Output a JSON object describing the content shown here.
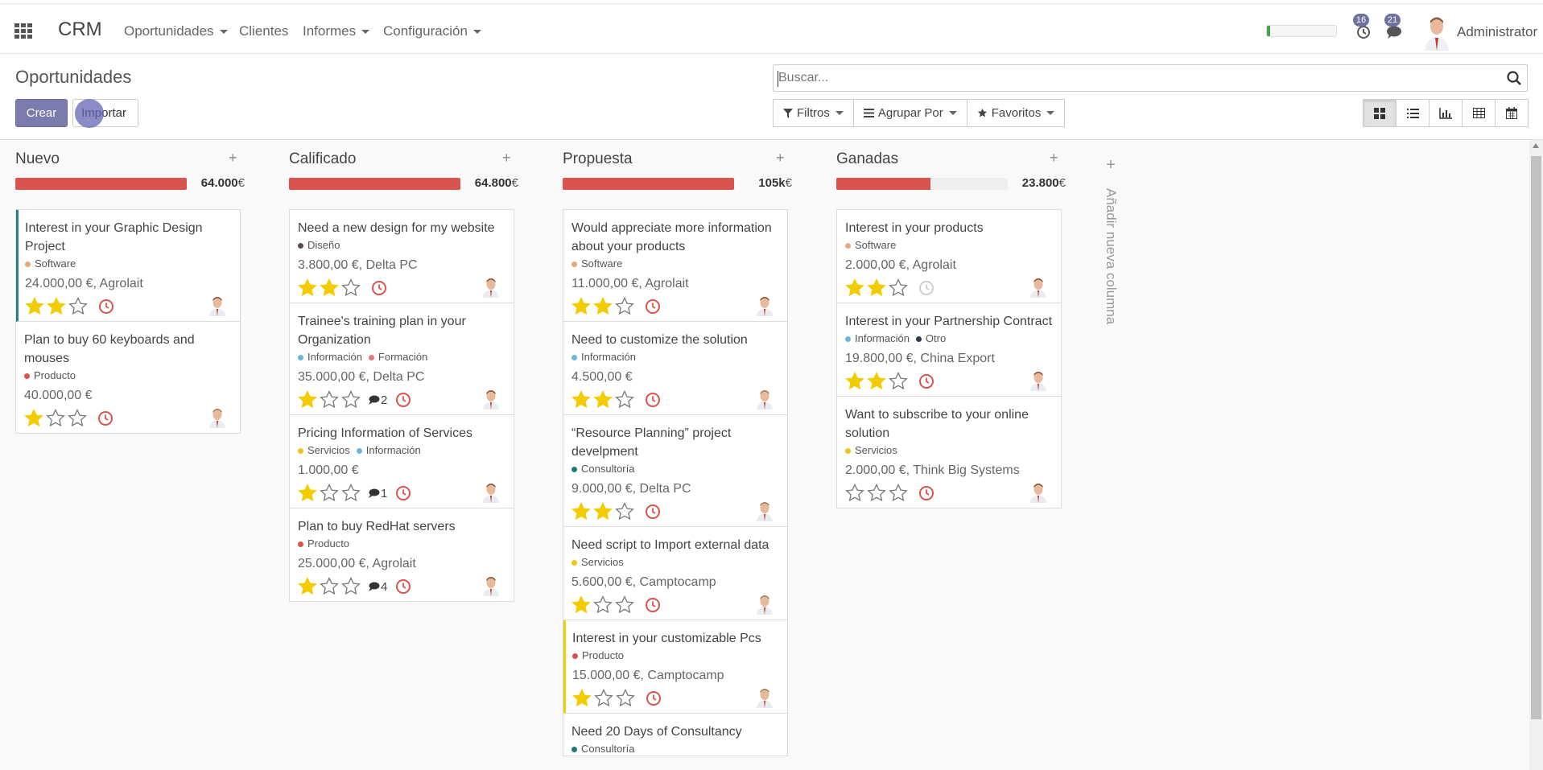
{
  "navbar": {
    "brand": "CRM",
    "menus": [
      {
        "label": "Oportunidades",
        "dropdown": true
      },
      {
        "label": "Clientes",
        "dropdown": false
      },
      {
        "label": "Informes",
        "dropdown": true
      },
      {
        "label": "Configuración",
        "dropdown": true
      }
    ],
    "activities_count": "16",
    "messages_count": "21",
    "user": "Administrator",
    "progress": 0.05
  },
  "control_panel": {
    "title": "Oportunidades",
    "create_label": "Crear",
    "import_label": "Importar",
    "search_placeholder": "Buscar...",
    "filters_label": "Filtros",
    "group_by_label": "Agrupar Por",
    "favorites_label": "Favoritos"
  },
  "columns": [
    {
      "title": "Nuevo",
      "total": "64.000",
      "currency": "€",
      "progress": 1.0,
      "cards": [
        {
          "title": "Interest in your Graphic Design Project",
          "tags": [
            {
              "name": "Software",
              "color": "#e8a97a"
            }
          ],
          "amount": "24.000,00 €, Agrolait",
          "stars": 2,
          "messages": "",
          "clock": "late",
          "border": "teal",
          "avatar": "a1"
        },
        {
          "title": "Plan to buy 60 keyboards and mouses",
          "tags": [
            {
              "name": "Producto",
              "color": "#d9534f"
            }
          ],
          "amount": "40.000,00 €",
          "stars": 1,
          "messages": "",
          "clock": "late",
          "border": "",
          "avatar": "a2"
        }
      ]
    },
    {
      "title": "Calificado",
      "total": "64.800",
      "currency": "€",
      "progress": 1.0,
      "cards": [
        {
          "title": "Need a new design for my website",
          "tags": [
            {
              "name": "Diseño",
              "color": "#5b4b58"
            }
          ],
          "amount": "3.800,00 €, Delta PC",
          "stars": 2,
          "messages": "",
          "clock": "late",
          "border": "",
          "avatar": "a1"
        },
        {
          "title": "Trainee's training plan in your Organization",
          "tags": [
            {
              "name": "Información",
              "color": "#6cb7d8"
            },
            {
              "name": "Formación",
              "color": "#e07a7a"
            }
          ],
          "amount": "35.000,00 €, Delta PC",
          "stars": 1,
          "messages": "2",
          "clock": "late",
          "border": "",
          "avatar": "a1"
        },
        {
          "title": "Pricing Information of Services",
          "tags": [
            {
              "name": "Servicios",
              "color": "#f0c419"
            },
            {
              "name": "Información",
              "color": "#6cb7d8"
            }
          ],
          "amount": "1.000,00 €",
          "stars": 1,
          "messages": "1",
          "clock": "late",
          "border": "",
          "avatar": "a1"
        },
        {
          "title": "Plan to buy RedHat servers",
          "tags": [
            {
              "name": "Producto",
              "color": "#d9534f"
            }
          ],
          "amount": "25.000,00 €, Agrolait",
          "stars": 1,
          "messages": "4",
          "clock": "late",
          "border": "",
          "avatar": "a1"
        }
      ]
    },
    {
      "title": "Propuesta",
      "total": "105k",
      "currency": "€",
      "progress": 1.0,
      "cards": [
        {
          "title": "Would appreciate more information about your products",
          "tags": [
            {
              "name": "Software",
              "color": "#e8a97a"
            }
          ],
          "amount": "11.000,00 €, Agrolait",
          "stars": 2,
          "messages": "",
          "clock": "late",
          "border": "",
          "avatar": "a1"
        },
        {
          "title": "Need to customize the solution",
          "tags": [
            {
              "name": "Información",
              "color": "#6cb7d8"
            }
          ],
          "amount": "4.500,00 €",
          "stars": 2,
          "messages": "",
          "clock": "late",
          "border": "",
          "avatar": "a2"
        },
        {
          "title": "“Resource Planning” project develpment",
          "tags": [
            {
              "name": "Consultoría",
              "color": "#1f7a7a"
            }
          ],
          "amount": "9.000,00 €, Delta PC",
          "stars": 2,
          "messages": "",
          "clock": "late",
          "border": "",
          "avatar": "a2"
        },
        {
          "title": "Need script to Import external data",
          "tags": [
            {
              "name": "Servicios",
              "color": "#f0c419"
            }
          ],
          "amount": "5.600,00 €, Camptocamp",
          "stars": 1,
          "messages": "",
          "clock": "late",
          "border": "",
          "avatar": "a2"
        },
        {
          "title": "Interest in your customizable Pcs",
          "tags": [
            {
              "name": "Producto",
              "color": "#d9534f"
            }
          ],
          "amount": "15.000,00 €, Camptocamp",
          "stars": 1,
          "messages": "",
          "clock": "late",
          "border": "yellow",
          "avatar": "a2"
        },
        {
          "title": "Need 20 Days of Consultancy",
          "tags": [
            {
              "name": "Consultoría",
              "color": "#1f7a7a"
            }
          ],
          "amount": "",
          "stars": -1,
          "messages": "",
          "clock": "",
          "border": "",
          "avatar": ""
        }
      ]
    },
    {
      "title": "Ganadas",
      "total": "23.800",
      "currency": "€",
      "progress": 0.55,
      "cards": [
        {
          "title": "Interest in your products",
          "tags": [
            {
              "name": "Software",
              "color": "#e8a97a"
            }
          ],
          "amount": "2.000,00 €, Agrolait",
          "stars": 2,
          "messages": "",
          "clock": "none",
          "border": "",
          "avatar": "a1"
        },
        {
          "title": "Interest in your Partnership Contract",
          "tags": [
            {
              "name": "Información",
              "color": "#6cb7d8"
            },
            {
              "name": "Otro",
              "color": "#2e3a4a"
            }
          ],
          "amount": "19.800,00 €, China Export",
          "stars": 2,
          "messages": "",
          "clock": "late",
          "border": "",
          "avatar": "a1"
        },
        {
          "title": "Want to subscribe to your online solution",
          "tags": [
            {
              "name": "Servicios",
              "color": "#f0c419"
            }
          ],
          "amount": "2.000,00 €, Think Big Systems",
          "stars": 0,
          "messages": "",
          "clock": "late",
          "border": "",
          "avatar": "a1"
        }
      ]
    }
  ],
  "add_column_label": "Añadir nueva columna",
  "colors": {
    "primary": "#7c7bad",
    "late": "#d9534f",
    "star": "#f3cc00",
    "progress": "#d9534f"
  }
}
